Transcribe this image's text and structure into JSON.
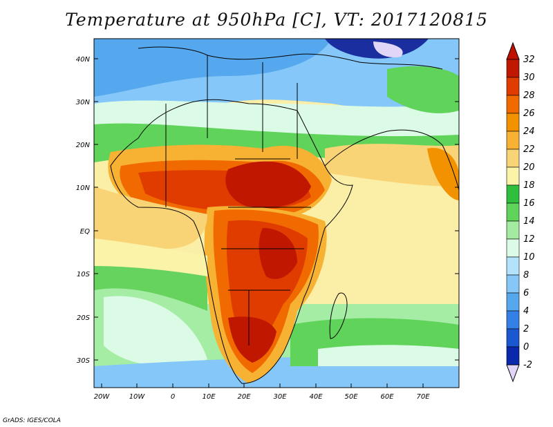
{
  "title": "Temperature at 950hPa [C], VT: 2017120815",
  "footer": "GrADS: IGES/COLA",
  "lat_labels": [
    "40N",
    "30N",
    "20N",
    "10N",
    "EQ",
    "10S",
    "20S",
    "30S"
  ],
  "lon_labels": [
    "20W",
    "10W",
    "0",
    "10E",
    "20E",
    "30E",
    "40E",
    "50E",
    "60E",
    "70E"
  ],
  "colorbar": {
    "labels": [
      "32",
      "30",
      "28",
      "26",
      "24",
      "22",
      "20",
      "18",
      "16",
      "14",
      "12",
      "10",
      "8",
      "6",
      "4",
      "2",
      "0",
      "-2"
    ],
    "colors": [
      "#c01800",
      "#e03c00",
      "#f06a00",
      "#f39200",
      "#f7b133",
      "#f9d477",
      "#fbf3a8",
      "#2fbf3c",
      "#5fd35a",
      "#a2eba0",
      "#dcfbe6",
      "#b3e3fc",
      "#84c7f8",
      "#56a8ee",
      "#3480e6",
      "#1a58d2",
      "#0a28ac"
    ],
    "top_arrow_color": "#c01000",
    "bottom_arrow_color": "#e2d6f8"
  },
  "map_colors": {
    "ocean_cool": "#f6eda0",
    "ocean_warm": "#fbe49a",
    "sea_green": "#3dc04a",
    "cold_blue": "#6cb2f4",
    "pale_cyan": "#d8f6f6",
    "hot_red": "#c22800",
    "dark_blue": "#1a2ea0"
  }
}
